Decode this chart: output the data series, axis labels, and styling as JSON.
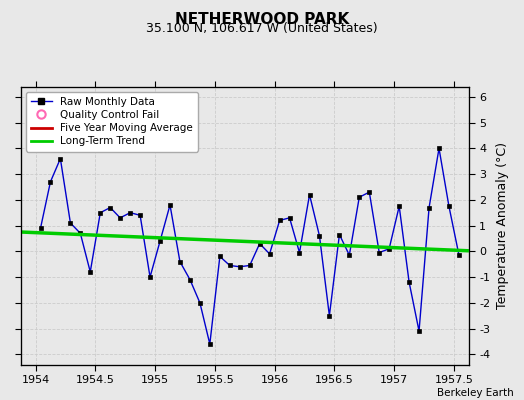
{
  "title": "NETHERWOOD PARK",
  "subtitle": "35.100 N, 106.617 W (United States)",
  "ylabel": "Temperature Anomaly (°C)",
  "credit": "Berkeley Earth",
  "background_color": "#e8e8e8",
  "plot_bg_color": "#e8e8e8",
  "xlim": [
    1953.875,
    1957.625
  ],
  "ylim": [
    -4.4,
    6.4
  ],
  "yticks": [
    -4,
    -3,
    -2,
    -1,
    0,
    1,
    2,
    3,
    4,
    5,
    6
  ],
  "xticks": [
    1954,
    1954.5,
    1955,
    1955.5,
    1956,
    1956.5,
    1957,
    1957.5
  ],
  "raw_x": [
    1954.042,
    1954.125,
    1954.208,
    1954.292,
    1954.375,
    1954.458,
    1954.542,
    1954.625,
    1954.708,
    1954.792,
    1954.875,
    1954.958,
    1955.042,
    1955.125,
    1955.208,
    1955.292,
    1955.375,
    1955.458,
    1955.542,
    1955.625,
    1955.708,
    1955.792,
    1955.875,
    1955.958,
    1956.042,
    1956.125,
    1956.208,
    1956.292,
    1956.375,
    1956.458,
    1956.542,
    1956.625,
    1956.708,
    1956.792,
    1956.875,
    1956.958,
    1957.042,
    1957.125,
    1957.208,
    1957.292,
    1957.375,
    1957.458,
    1957.542
  ],
  "raw_y": [
    0.9,
    2.7,
    3.6,
    1.1,
    0.7,
    -0.8,
    1.5,
    1.7,
    1.3,
    1.5,
    1.4,
    -1.0,
    0.4,
    1.8,
    -0.4,
    -1.1,
    -2.0,
    -3.6,
    -0.2,
    -0.55,
    -0.6,
    -0.55,
    0.3,
    -0.1,
    1.2,
    1.3,
    -0.05,
    2.2,
    0.6,
    -2.5,
    0.65,
    -0.15,
    2.1,
    2.3,
    -0.05,
    0.1,
    1.75,
    -1.2,
    -3.1,
    1.7,
    4.0,
    1.75,
    -0.15
  ],
  "trend_x": [
    1953.875,
    1957.625
  ],
  "trend_y": [
    0.75,
    0.02
  ],
  "raw_color": "#0000cc",
  "trend_color": "#00cc00",
  "ma_color": "#cc0000",
  "qc_color": "#ff69b4",
  "grid_color": "#cccccc",
  "title_fontsize": 11,
  "subtitle_fontsize": 9,
  "tick_fontsize": 8,
  "ylabel_fontsize": 9
}
